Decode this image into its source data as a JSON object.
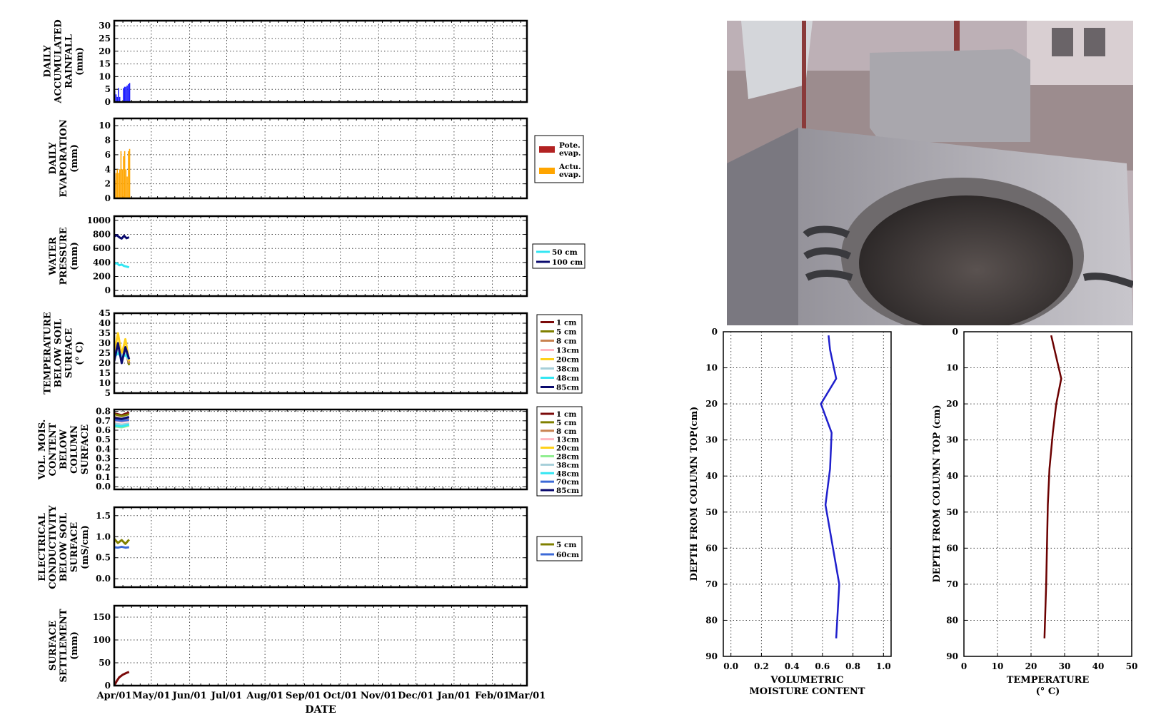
{
  "chart_data": [
    {
      "type": "bar",
      "ylabel": "DAILY ACCUMULATED RAINFALL (mm)",
      "ylim": [
        0,
        32
      ],
      "yticks": [
        0,
        5,
        10,
        15,
        20,
        25,
        30
      ],
      "grid": true,
      "series": [
        {
          "name": "",
          "color": "#1a1aff",
          "x": [
            "2014-04-01",
            "2014-04-02",
            "2014-04-03",
            "2014-04-04",
            "2014-04-05",
            "2014-04-06",
            "2014-04-07",
            "2014-04-08",
            "2014-04-09",
            "2014-04-10",
            "2014-04-11",
            "2014-04-12",
            "2014-04-13"
          ],
          "values": [
            4.5,
            3,
            2,
            5.5,
            2,
            0,
            0,
            5.5,
            6,
            6,
            6.5,
            7,
            7.5
          ]
        }
      ]
    },
    {
      "type": "bar",
      "ylabel": "DAILY EVAPORATION (mm)",
      "ylim": [
        0,
        11
      ],
      "yticks": [
        0,
        2,
        4,
        6,
        8,
        10
      ],
      "grid": true,
      "legend": "right",
      "series": [
        {
          "name": "Pote. evap.",
          "color": "#b22222",
          "x": [
            "2014-04-01",
            "2014-04-02",
            "2014-04-03",
            "2014-04-04",
            "2014-04-05",
            "2014-04-06",
            "2014-04-07",
            "2014-04-08",
            "2014-04-09",
            "2014-04-10",
            "2014-04-11",
            "2014-04-12",
            "2014-04-13"
          ],
          "values": [
            0,
            0,
            0,
            0,
            0,
            0,
            0,
            0,
            0,
            0,
            0,
            0,
            0
          ]
        },
        {
          "name": "Actu. evap.",
          "color": "#ffa500",
          "x": [
            "2014-04-01",
            "2014-04-02",
            "2014-04-03",
            "2014-04-04",
            "2014-04-05",
            "2014-04-06",
            "2014-04-07",
            "2014-04-08",
            "2014-04-09",
            "2014-04-10",
            "2014-04-11",
            "2014-04-12",
            "2014-04-13"
          ],
          "values": [
            2.5,
            3.5,
            4,
            3.5,
            4,
            6.5,
            4,
            5.8,
            6.5,
            4,
            3,
            6.5,
            6.8
          ]
        }
      ]
    },
    {
      "type": "line",
      "ylabel": "WATER PRESSURE (mm)",
      "ylim": [
        -80,
        1060
      ],
      "yticks": [
        0,
        200,
        400,
        600,
        800,
        1000
      ],
      "grid": true,
      "legend": "right",
      "series": [
        {
          "name": "50 cm",
          "color": "#33e6f2",
          "x": [
            "2014-04-01",
            "2014-04-03",
            "2014-04-05",
            "2014-04-07",
            "2014-04-09",
            "2014-04-11",
            "2014-04-13"
          ],
          "values": [
            380,
            390,
            360,
            370,
            350,
            340,
            330
          ]
        },
        {
          "name": "100 cm",
          "color": "#0a0a6e",
          "x": [
            "2014-04-01",
            "2014-04-03",
            "2014-04-05",
            "2014-04-07",
            "2014-04-09",
            "2014-04-11",
            "2014-04-13"
          ],
          "values": [
            770,
            790,
            760,
            740,
            780,
            745,
            760
          ]
        }
      ]
    },
    {
      "type": "line",
      "ylabel": "TEMPERATURE BELOW SOIL SURFACE (° C)",
      "ylim": [
        5,
        45
      ],
      "yticks": [
        5,
        10,
        15,
        20,
        25,
        30,
        35,
        40,
        45
      ],
      "grid": true,
      "legend": "right",
      "series": [
        {
          "name": "1 cm",
          "color": "#7b0a0a",
          "x": [
            "2014-04-01",
            "2014-04-04",
            "2014-04-07",
            "2014-04-10",
            "2014-04-13"
          ],
          "values": [
            24,
            30,
            22,
            28,
            20
          ]
        },
        {
          "name": "5 cm",
          "color": "#808000",
          "x": [
            "2014-04-01",
            "2014-04-04",
            "2014-04-07",
            "2014-04-10",
            "2014-04-13"
          ],
          "values": [
            23,
            29,
            21,
            27,
            19
          ]
        },
        {
          "name": "8 cm",
          "color": "#c88250",
          "x": [
            "2014-04-01",
            "2014-04-04",
            "2014-04-07",
            "2014-04-10",
            "2014-04-13"
          ],
          "values": [
            23,
            28,
            22,
            26,
            20
          ]
        },
        {
          "name": "13cm",
          "color": "#ffb6c1",
          "x": [
            "2014-04-01",
            "2014-04-04",
            "2014-04-07",
            "2014-04-10",
            "2014-04-13"
          ],
          "values": [
            24,
            27,
            23,
            25,
            21
          ]
        },
        {
          "name": "20cm",
          "color": "#ffd11a",
          "x": [
            "2014-04-01",
            "2014-04-04",
            "2014-04-07",
            "2014-04-10",
            "2014-04-13"
          ],
          "values": [
            25,
            35,
            24,
            32,
            21
          ]
        },
        {
          "name": "38cm",
          "color": "#a6cfd9",
          "x": [
            "2014-04-01",
            "2014-04-04",
            "2014-04-07",
            "2014-04-10",
            "2014-04-13"
          ],
          "values": [
            24,
            26,
            24,
            25,
            22
          ]
        },
        {
          "name": "48cm",
          "color": "#33e6f2",
          "x": [
            "2014-04-01",
            "2014-04-04",
            "2014-04-07",
            "2014-04-10",
            "2014-04-13"
          ],
          "values": [
            23,
            25,
            23,
            24,
            22
          ]
        },
        {
          "name": "85cm",
          "color": "#0a0a6e",
          "x": [
            "2014-04-01",
            "2014-04-04",
            "2014-04-07",
            "2014-04-10",
            "2014-04-13"
          ],
          "values": [
            21,
            30,
            20,
            28,
            22
          ]
        }
      ]
    },
    {
      "type": "line",
      "ylabel": "VOL. MOIS. CONTENT BELOW COLUMN SURFACE",
      "ylim": [
        -0.03,
        0.82
      ],
      "yticks": [
        0.0,
        0.1,
        0.2,
        0.3,
        0.4,
        0.5,
        0.6,
        0.7,
        0.8
      ],
      "grid": true,
      "legend": "right",
      "series": [
        {
          "name": "1 cm",
          "color": "#7b0a0a",
          "x": [
            "2014-04-01",
            "2014-04-07",
            "2014-04-13"
          ],
          "values": [
            0.78,
            0.76,
            0.79
          ]
        },
        {
          "name": "5 cm",
          "color": "#808000",
          "x": [
            "2014-04-01",
            "2014-04-07",
            "2014-04-13"
          ],
          "values": [
            0.77,
            0.75,
            0.77
          ]
        },
        {
          "name": "8 cm",
          "color": "#c88250",
          "x": [
            "2014-04-01",
            "2014-04-07",
            "2014-04-13"
          ],
          "values": [
            0.74,
            0.72,
            0.73
          ]
        },
        {
          "name": "13cm",
          "color": "#ffb6c1",
          "x": [
            "2014-04-01",
            "2014-04-07",
            "2014-04-13"
          ],
          "values": [
            0.7,
            0.69,
            0.7
          ]
        },
        {
          "name": "20cm",
          "color": "#ffd11a",
          "x": [
            "2014-04-01",
            "2014-04-07",
            "2014-04-13"
          ],
          "values": [
            0.66,
            0.65,
            0.66
          ]
        },
        {
          "name": "28cm",
          "color": "#90ee90",
          "x": [
            "2014-04-01",
            "2014-04-07",
            "2014-04-13"
          ],
          "values": [
            0.64,
            0.63,
            0.65
          ]
        },
        {
          "name": "38cm",
          "color": "#a6cfd9",
          "x": [
            "2014-04-01",
            "2014-04-07",
            "2014-04-13"
          ],
          "values": [
            0.67,
            0.66,
            0.67
          ]
        },
        {
          "name": "48cm",
          "color": "#33e6f2",
          "x": [
            "2014-04-01",
            "2014-04-07",
            "2014-04-13"
          ],
          "values": [
            0.65,
            0.64,
            0.66
          ]
        },
        {
          "name": "70cm",
          "color": "#3c6ad7",
          "x": [
            "2014-04-01",
            "2014-04-07",
            "2014-04-13"
          ],
          "values": [
            0.71,
            0.7,
            0.71
          ]
        },
        {
          "name": "85cm",
          "color": "#0a0a6e",
          "x": [
            "2014-04-01",
            "2014-04-07",
            "2014-04-13"
          ],
          "values": [
            0.73,
            0.72,
            0.74
          ]
        }
      ]
    },
    {
      "type": "line",
      "ylabel": "ELECTRICAL CONDUCTIVITY BELOW SOIL SURFACE (mS/cm)",
      "ylim": [
        -0.2,
        1.7
      ],
      "yticks": [
        0.0,
        0.5,
        1.0,
        1.5
      ],
      "grid": true,
      "legend": "right",
      "series": [
        {
          "name": "5 cm",
          "color": "#808000",
          "x": [
            "2014-04-01",
            "2014-04-04",
            "2014-04-07",
            "2014-04-10",
            "2014-04-13"
          ],
          "values": [
            0.95,
            0.85,
            0.92,
            0.83,
            0.93
          ]
        },
        {
          "name": "60cm",
          "color": "#3c6ad7",
          "x": [
            "2014-04-01",
            "2014-04-04",
            "2014-04-07",
            "2014-04-10",
            "2014-04-13"
          ],
          "values": [
            0.75,
            0.74,
            0.76,
            0.74,
            0.75
          ]
        }
      ]
    },
    {
      "type": "line",
      "ylabel": "SURFACE SETTLEMENT (mm)",
      "xlabel": "DATE",
      "ylim": [
        0,
        175
      ],
      "yticks": [
        0,
        50,
        100,
        150
      ],
      "xticks": [
        "Apr/01",
        "May/01",
        "Jun/01",
        "Jul/01",
        "Aug/01",
        "Sep/01",
        "Oct/01",
        "Nov/01",
        "Dec/01",
        "Jan/01",
        "Feb/01",
        "Mar/01"
      ],
      "grid": true,
      "series": [
        {
          "name": "",
          "color": "#7b0a0a",
          "x": [
            "2014-04-01",
            "2014-04-03",
            "2014-04-05",
            "2014-04-08",
            "2014-04-11",
            "2014-04-13"
          ],
          "values": [
            0,
            10,
            18,
            24,
            28,
            30
          ]
        }
      ]
    },
    {
      "type": "line",
      "xlabel": "VOLUMETRIC MOISTURE CONTENT",
      "ylabel": "DEPTH FROM COLUMN TOP(cm)",
      "xlim": [
        -0.05,
        1.05
      ],
      "ylim": [
        90,
        0
      ],
      "xticks": [
        "0.0",
        "0.2",
        "0.4",
        "0.6",
        "0.8",
        "1.0"
      ],
      "yticks": [
        0,
        10,
        20,
        30,
        40,
        50,
        60,
        70,
        80,
        90
      ],
      "grid": true,
      "series": [
        {
          "name": "",
          "color": "#1f1fcc",
          "x": [
            0.64,
            0.65,
            0.69,
            0.59,
            0.66,
            0.65,
            0.62,
            0.71,
            0.69
          ],
          "values": [
            1,
            5,
            13,
            20,
            28,
            38,
            48,
            70,
            85
          ]
        }
      ]
    },
    {
      "type": "line",
      "xlabel": "TEMPERATURE (° C)",
      "ylabel": "DEPTH FROM COLUMN TOP (cm)",
      "xlim": [
        0,
        50
      ],
      "ylim": [
        90,
        0
      ],
      "xticks": [
        "0",
        "10",
        "20",
        "30",
        "40",
        "50"
      ],
      "yticks": [
        0,
        10,
        20,
        30,
        40,
        50,
        60,
        70,
        80,
        90
      ],
      "grid": true,
      "series": [
        {
          "name": "",
          "color": "#6b0000",
          "x": [
            26,
            27,
            29,
            27.5,
            26.5,
            25.5,
            25,
            24.5,
            24
          ],
          "values": [
            1,
            5,
            13,
            20,
            28,
            38,
            48,
            70,
            85
          ]
        }
      ]
    }
  ]
}
